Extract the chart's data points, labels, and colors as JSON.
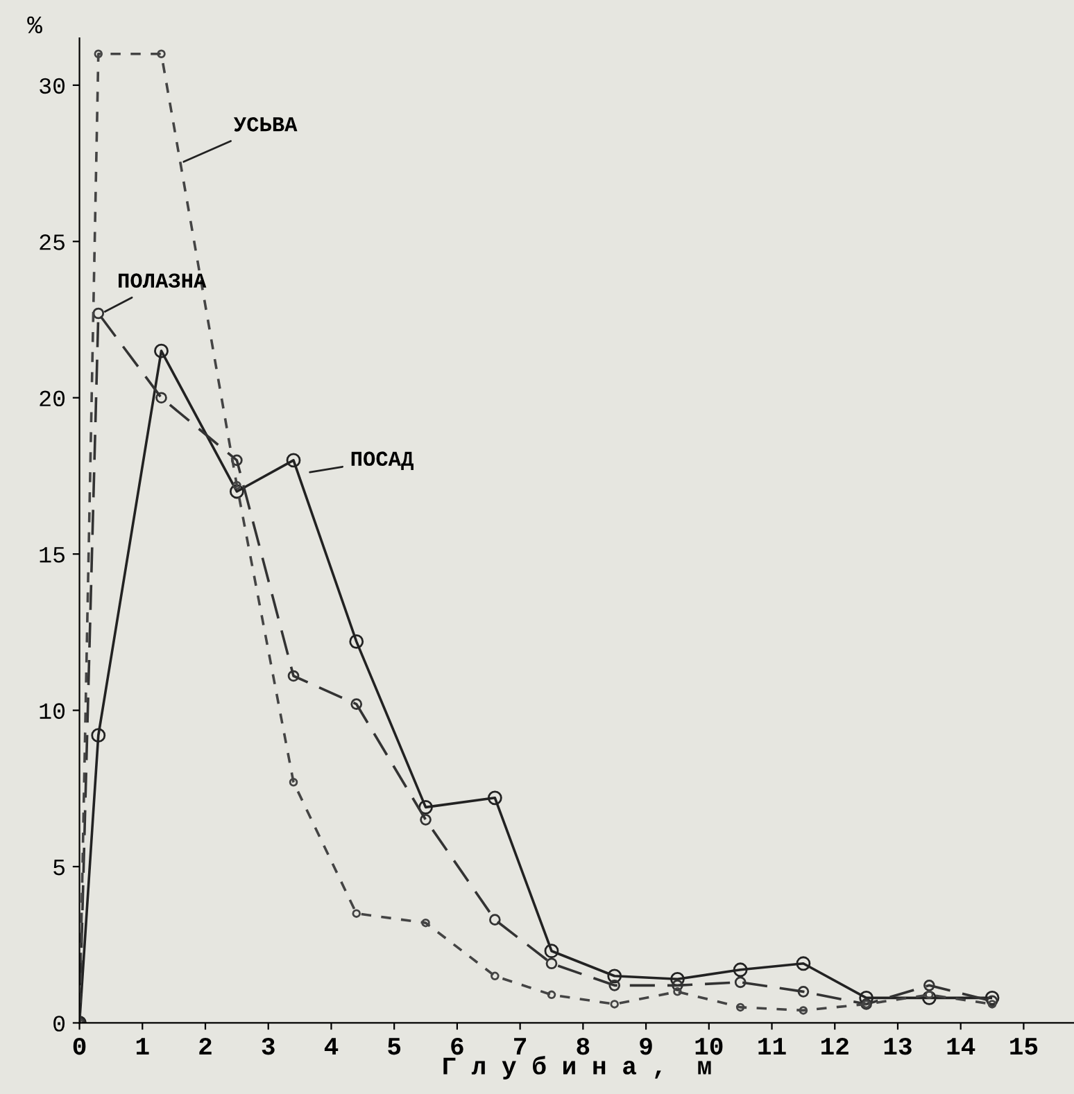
{
  "chart_data": {
    "type": "line",
    "xlabel": "Г л у б и н а ,  м",
    "ylabel": "%",
    "xlim": [
      0,
      15.8
    ],
    "ylim": [
      0,
      31.5
    ],
    "xticks": [
      0,
      1,
      2,
      3,
      4,
      5,
      6,
      7,
      8,
      9,
      10,
      11,
      12,
      13,
      14,
      15
    ],
    "yticks": [
      0,
      5,
      10,
      15,
      20,
      25,
      30
    ],
    "grid": false,
    "legend": false,
    "marker": "circle",
    "series": [
      {
        "color": "#222222",
        "line_style": "solid",
        "x": [
          0,
          0.3,
          1.3,
          2.5,
          3.4,
          4.4,
          5.5,
          6.6,
          7.5,
          8.5,
          9.5,
          10.5,
          11.5,
          12.5,
          13.5,
          14.5
        ],
        "values": [
          0,
          9.2,
          21.5,
          17,
          18,
          12.2,
          6.9,
          7.2,
          2.3,
          1.5,
          1.4,
          1.7,
          1.9,
          0.8,
          0.8,
          0.8
        ]
      },
      {
        "color": "#333333",
        "line_style": "dashed",
        "x": [
          0,
          0.3,
          1.3,
          2.5,
          3.4,
          4.4,
          5.5,
          6.6,
          7.5,
          8.5,
          9.5,
          10.5,
          11.5,
          12.5,
          13.5,
          14.5
        ],
        "values": [
          0,
          22.7,
          20,
          18,
          11.1,
          10.2,
          6.5,
          3.3,
          1.9,
          1.2,
          1.2,
          1.3,
          1.0,
          0.6,
          1.2,
          0.7
        ]
      },
      {
        "color": "#444444",
        "line_style": "dotted",
        "x": [
          0,
          0.3,
          1.3,
          2.5,
          3.4,
          4.4,
          5.5,
          6.6,
          7.5,
          8.5,
          9.5,
          10.5,
          11.5,
          12.5,
          13.5,
          14.5
        ],
        "values": [
          0,
          31,
          31,
          17.2,
          7.7,
          3.5,
          3.2,
          1.5,
          0.9,
          0.6,
          1.0,
          0.5,
          0.4,
          0.6,
          0.9,
          0.6
        ]
      }
    ],
    "annotations": [
      {
        "text": "ПОСАД",
        "x": 3.6,
        "y": 17.6
      },
      {
        "text": "ПОЛАЗНА",
        "x": 0.35,
        "y": 22.7
      },
      {
        "text": "УСЬВА",
        "x": 1.6,
        "y": 27.5
      }
    ]
  }
}
